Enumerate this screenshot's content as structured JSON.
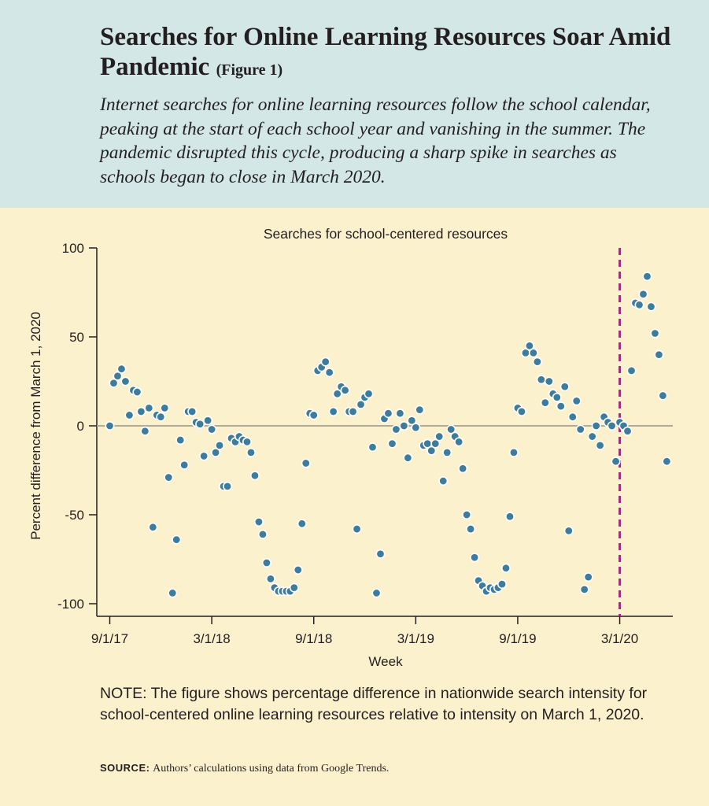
{
  "header": {
    "title": "Searches for Online Learning Resources Soar Amid Pandemic",
    "figure_label": "(Figure 1)",
    "subtitle": "Internet searches for online learning resources follow the school calendar, peaking at the start of each school year and vanishing in the summer. The pandemic disrupted this cycle, producing a sharp spike in searches as schools began to close in March 2020."
  },
  "note": "NOTE: The figure shows percentage difference in nationwide search intensity for school-centered online learning resources relative to intensity on March 1, 2020.",
  "source": {
    "label": "SOURCE:",
    "text": "Authors’ calculations using data from Google Trends."
  },
  "colors": {
    "header_bg": "#d3e7e6",
    "page_bg": "#fbf1cd",
    "point_fill": "#3e7c9c",
    "point_stroke": "#ffffff",
    "reference_line": "#9b2f7d",
    "zero_line": "#b0aa9a"
  },
  "chart_data": {
    "type": "scatter",
    "title": "Searches for school-centered resources",
    "xlabel": "Week",
    "ylabel": "Percent difference from March 1, 2020",
    "ylim": [
      -100,
      100
    ],
    "yticks": [
      100,
      50,
      0,
      -50,
      -100
    ],
    "xlim": [
      0,
      140
    ],
    "xticks": [
      {
        "week": 0,
        "label": "9/1/17"
      },
      {
        "week": 26,
        "label": "3/1/18"
      },
      {
        "week": 52,
        "label": "9/1/18"
      },
      {
        "week": 78,
        "label": "3/1/19"
      },
      {
        "week": 104,
        "label": "9/1/19"
      },
      {
        "week": 130,
        "label": "3/1/20"
      }
    ],
    "reference_line": {
      "week": 130,
      "label": "3/1/20",
      "style": "dashed"
    },
    "grid": false,
    "series": [
      {
        "name": "Searches for school-centered resources",
        "points": [
          [
            0,
            0
          ],
          [
            1,
            24
          ],
          [
            2,
            28
          ],
          [
            3,
            32
          ],
          [
            4,
            25
          ],
          [
            5,
            6
          ],
          [
            6,
            20
          ],
          [
            7,
            19
          ],
          [
            8,
            8
          ],
          [
            9,
            -3
          ],
          [
            10,
            10
          ],
          [
            11,
            -57
          ],
          [
            12,
            6
          ],
          [
            13,
            5
          ],
          [
            14,
            10
          ],
          [
            15,
            -29
          ],
          [
            16,
            -94
          ],
          [
            17,
            -64
          ],
          [
            18,
            -8
          ],
          [
            19,
            -22
          ],
          [
            20,
            8
          ],
          [
            21,
            8
          ],
          [
            22,
            2
          ],
          [
            23,
            1
          ],
          [
            24,
            -17
          ],
          [
            25,
            3
          ],
          [
            26,
            -2
          ],
          [
            27,
            -15
          ],
          [
            28,
            -11
          ],
          [
            29,
            -34
          ],
          [
            30,
            -34
          ],
          [
            31,
            -7
          ],
          [
            32,
            -9
          ],
          [
            33,
            -6
          ],
          [
            34,
            -8
          ],
          [
            35,
            -9
          ],
          [
            36,
            -15
          ],
          [
            37,
            -28
          ],
          [
            38,
            -54
          ],
          [
            39,
            -61
          ],
          [
            40,
            -77
          ],
          [
            41,
            -86
          ],
          [
            42,
            -91
          ],
          [
            43,
            -93
          ],
          [
            44,
            -93
          ],
          [
            45,
            -93
          ],
          [
            46,
            -93
          ],
          [
            47,
            -91
          ],
          [
            48,
            -81
          ],
          [
            49,
            -55
          ],
          [
            50,
            -21
          ],
          [
            51,
            7
          ],
          [
            52,
            6
          ],
          [
            53,
            31
          ],
          [
            54,
            33
          ],
          [
            55,
            36
          ],
          [
            56,
            30
          ],
          [
            57,
            8
          ],
          [
            58,
            18
          ],
          [
            59,
            22
          ],
          [
            60,
            20
          ],
          [
            61,
            8
          ],
          [
            62,
            8
          ],
          [
            63,
            -58
          ],
          [
            64,
            12
          ],
          [
            65,
            16
          ],
          [
            66,
            18
          ],
          [
            67,
            -12
          ],
          [
            68,
            -94
          ],
          [
            69,
            -72
          ],
          [
            70,
            4
          ],
          [
            71,
            7
          ],
          [
            72,
            -10
          ],
          [
            73,
            -2
          ],
          [
            74,
            7
          ],
          [
            75,
            0
          ],
          [
            76,
            -18
          ],
          [
            77,
            3
          ],
          [
            78,
            -1
          ],
          [
            79,
            9
          ],
          [
            80,
            -11
          ],
          [
            81,
            -10
          ],
          [
            82,
            -14
          ],
          [
            83,
            -10
          ],
          [
            84,
            -6
          ],
          [
            85,
            -31
          ],
          [
            86,
            -15
          ],
          [
            87,
            -2
          ],
          [
            88,
            -6
          ],
          [
            89,
            -9
          ],
          [
            90,
            -24
          ],
          [
            91,
            -50
          ],
          [
            92,
            -58
          ],
          [
            93,
            -74
          ],
          [
            94,
            -87
          ],
          [
            95,
            -90
          ],
          [
            96,
            -93
          ],
          [
            97,
            -91
          ],
          [
            98,
            -92
          ],
          [
            99,
            -91
          ],
          [
            100,
            -89
          ],
          [
            101,
            -80
          ],
          [
            102,
            -51
          ],
          [
            103,
            -15
          ],
          [
            104,
            10
          ],
          [
            105,
            8
          ],
          [
            106,
            41
          ],
          [
            107,
            45
          ],
          [
            108,
            41
          ],
          [
            109,
            36
          ],
          [
            110,
            26
          ],
          [
            111,
            13
          ],
          [
            112,
            25
          ],
          [
            113,
            18
          ],
          [
            114,
            16
          ],
          [
            115,
            11
          ],
          [
            116,
            22
          ],
          [
            117,
            -59
          ],
          [
            118,
            5
          ],
          [
            119,
            14
          ],
          [
            120,
            -2
          ],
          [
            121,
            -92
          ],
          [
            122,
            -85
          ],
          [
            123,
            -6
          ],
          [
            124,
            0
          ],
          [
            125,
            -11
          ],
          [
            126,
            5
          ],
          [
            127,
            2
          ],
          [
            128,
            0
          ],
          [
            129,
            -20
          ],
          [
            130,
            2
          ],
          [
            131,
            0
          ],
          [
            132,
            -3
          ],
          [
            133,
            31
          ],
          [
            134,
            69
          ],
          [
            135,
            68
          ],
          [
            136,
            74
          ],
          [
            137,
            84
          ],
          [
            138,
            67
          ],
          [
            139,
            52
          ],
          [
            140,
            40
          ],
          [
            141,
            17
          ],
          [
            142,
            -20
          ]
        ]
      }
    ]
  }
}
